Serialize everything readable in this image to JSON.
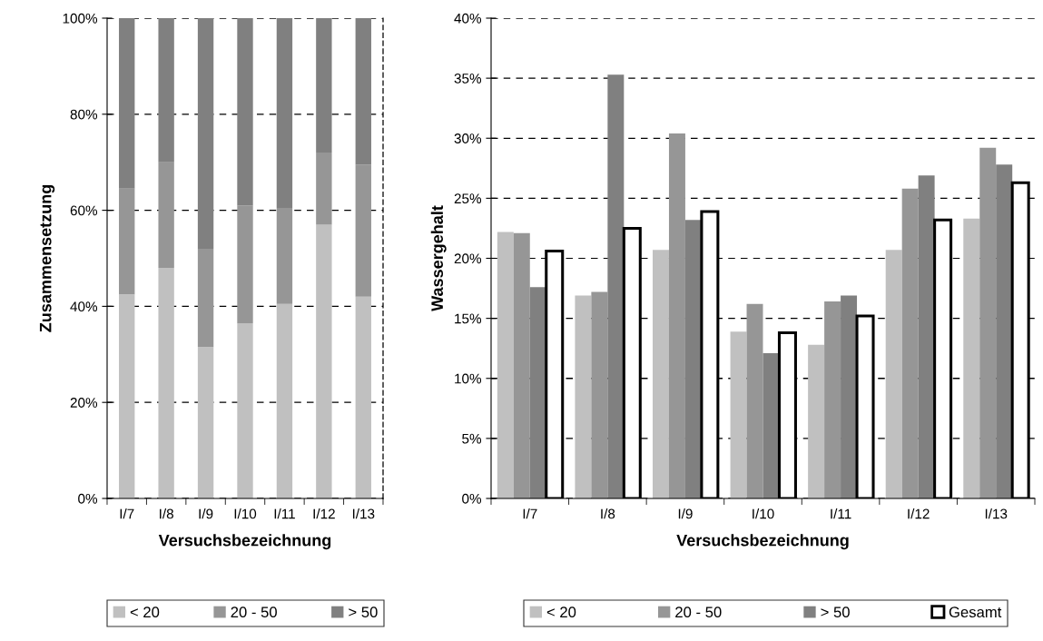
{
  "chart_data": [
    {
      "type": "bar",
      "stacked": true,
      "xlabel": "Versuchsbezeichnung",
      "ylabel": "Zusammensetzung",
      "categories": [
        "I/7",
        "I/8",
        "I/9",
        "I/10",
        "I/11",
        "I/12",
        "I/13"
      ],
      "series": [
        {
          "name": "< 20",
          "color": "#c0c0c0",
          "values": [
            42.5,
            48,
            31.5,
            36.5,
            40.5,
            57,
            42
          ]
        },
        {
          "name": "20 - 50",
          "color": "#969696",
          "values": [
            22,
            22,
            20.5,
            24.5,
            20,
            15,
            27.5
          ]
        },
        {
          "name": "> 50",
          "color": "#808080",
          "values": [
            35.5,
            30,
            48,
            39,
            39.5,
            28,
            30.5
          ]
        }
      ],
      "ylim": [
        0,
        100
      ],
      "yticks": [
        {
          "value": 0,
          "label": "0%"
        },
        {
          "value": 20,
          "label": "20%"
        },
        {
          "value": 40,
          "label": "40%"
        },
        {
          "value": 60,
          "label": "60%"
        },
        {
          "value": 80,
          "label": "80%"
        },
        {
          "value": 100,
          "label": "100%"
        }
      ],
      "grid": "y",
      "legend": "bottom"
    },
    {
      "type": "bar",
      "xlabel": "Versuchsbezeichnung",
      "ylabel": "Wassergehalt",
      "categories": [
        "I/7",
        "I/8",
        "I/9",
        "I/10",
        "I/11",
        "I/12",
        "I/13"
      ],
      "series": [
        {
          "name": "< 20",
          "color": "#c0c0c0",
          "values": [
            22.2,
            16.9,
            20.7,
            13.9,
            12.8,
            20.7,
            23.3
          ]
        },
        {
          "name": "20 - 50",
          "color": "#969696",
          "values": [
            22.1,
            17.2,
            30.4,
            16.2,
            16.4,
            25.8,
            29.2
          ]
        },
        {
          "name": "> 50",
          "color": "#808080",
          "values": [
            17.6,
            35.3,
            23.2,
            12.1,
            16.9,
            26.9,
            27.8
          ]
        },
        {
          "name": "Gesamt",
          "color": "#ffffff",
          "values": [
            20.6,
            22.5,
            23.9,
            13.8,
            15.2,
            23.2,
            26.3
          ]
        }
      ],
      "ylim": [
        0,
        40
      ],
      "yticks": [
        {
          "value": 0,
          "label": "0%"
        },
        {
          "value": 5,
          "label": "5%"
        },
        {
          "value": 10,
          "label": "10%"
        },
        {
          "value": 15,
          "label": "15%"
        },
        {
          "value": 20,
          "label": "20%"
        },
        {
          "value": 25,
          "label": "25%"
        },
        {
          "value": 30,
          "label": "30%"
        },
        {
          "value": 35,
          "label": "35%"
        },
        {
          "value": 40,
          "label": "40%"
        }
      ],
      "grid": "y",
      "legend": "bottom"
    }
  ]
}
